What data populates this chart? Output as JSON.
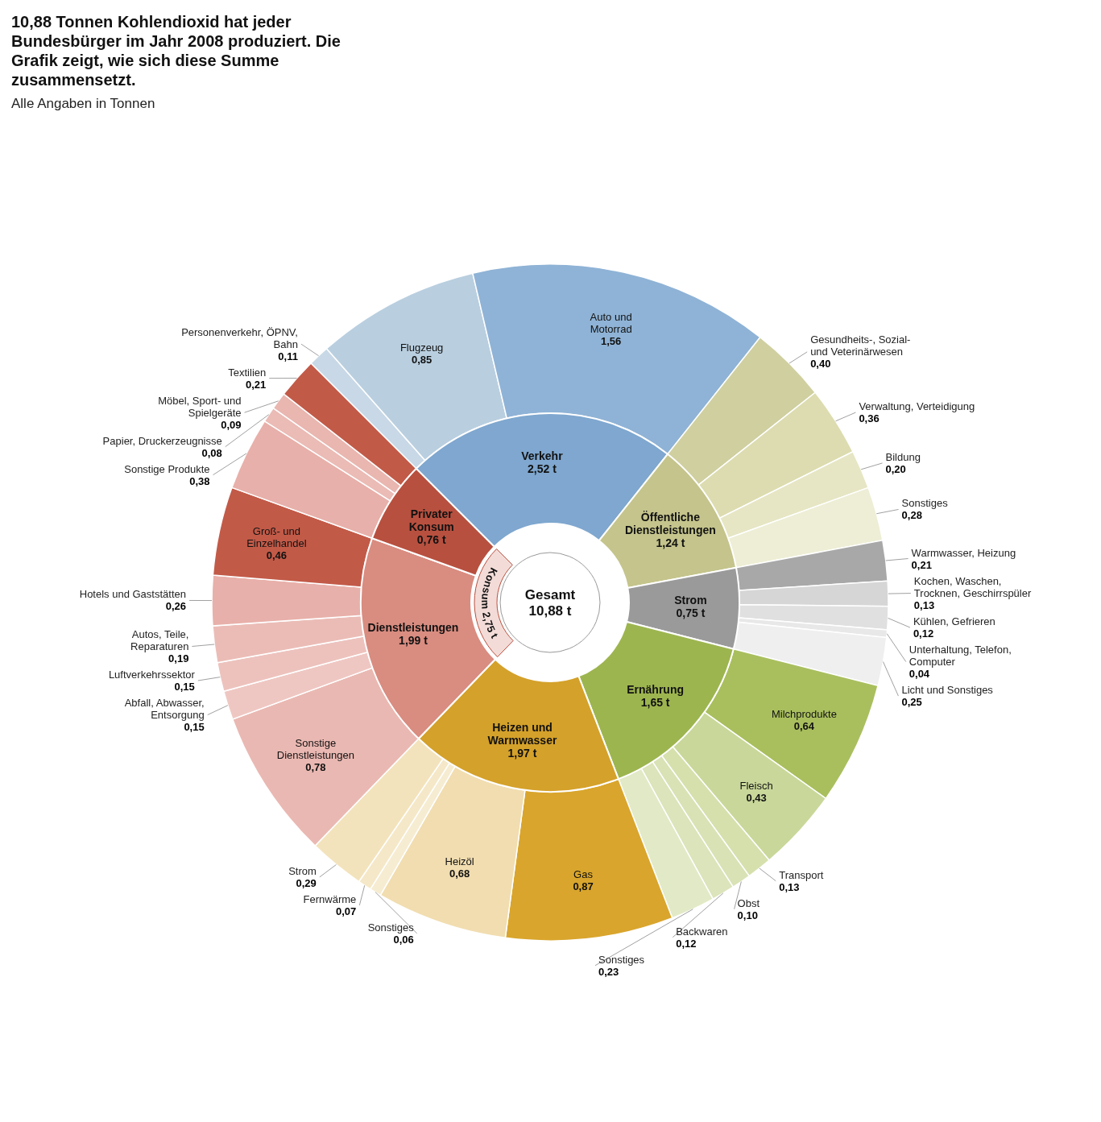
{
  "chart_data": [
    {
      "type": "donut",
      "title": "10,88 Tonnen Kohlendioxid hat jeder Bundesbürger im Jahr 2008 produziert. Die Grafik zeigt, wie sich diese Summe zusammensetzt.",
      "annotations": [
        "Gesamt 10,88 t",
        "Konsum 2,75 t"
      ],
      "categories": [
        "Verkehr",
        "Öffentliche Dienstleistungen",
        "Strom",
        "Ernährung",
        "Heizen und Warmwasser",
        "Dienstleistungen",
        "Privater Konsum"
      ],
      "values": [
        2.52,
        1.24,
        0.75,
        1.65,
        1.97,
        1.99,
        0.76
      ],
      "value_labels": [
        "2,52 t",
        "1,24 t",
        "0,75 t",
        "1,65 t",
        "1,97 t",
        "1,99 t",
        "0,76 t"
      ],
      "colors": [
        "#7fa7cf",
        "#c4c48c",
        "#9a9a9a",
        "#9db54f",
        "#d4a12a",
        "#d98c80",
        "#b8503f"
      ]
    },
    {
      "type": "donut",
      "subtitle": "Alle Angaben in Tonnen",
      "categories": [
        "Personenverkehr, ÖPNV, Bahn",
        "Flugzeug",
        "Auto und Motorrad",
        "Gesundheits-, Sozial- und Veterinärwesen",
        "Verwaltung, Verteidigung",
        "Bildung",
        "Sonstiges",
        "Warmwasser, Heizung",
        "Kochen, Waschen, Trocknen, Geschirrspüler",
        "Kühlen, Gefrieren",
        "Unterhaltung, Telefon, Computer",
        "Licht und Sonstiges",
        "Milchprodukte",
        "Fleisch",
        "Transport",
        "Obst",
        "Backwaren",
        "Sonstiges",
        "Gas",
        "Heizöl",
        "Sonstiges",
        "Fernwärme",
        "Strom",
        "Sonstige Dienstleistungen",
        "Abfall, Abwasser, Entsorgung",
        "Luftverkehrssektor",
        "Autos, Teile, Reparaturen",
        "Hotels und Gaststätten",
        "Groß- und Einzelhandel",
        "Sonstige Produkte",
        "Papier, Druckerzeugnisse",
        "Möbel, Sport- und Spielgeräte",
        "Textilien"
      ],
      "values": [
        0.11,
        0.85,
        1.56,
        0.4,
        0.36,
        0.2,
        0.28,
        0.21,
        0.13,
        0.12,
        0.04,
        0.25,
        0.64,
        0.43,
        0.13,
        0.1,
        0.12,
        0.23,
        0.87,
        0.68,
        0.06,
        0.07,
        0.29,
        0.78,
        0.15,
        0.15,
        0.19,
        0.26,
        0.46,
        0.38,
        0.08,
        0.09,
        0.21
      ],
      "value_labels": [
        "0,11",
        "0,85",
        "1,56",
        "0,40",
        "0,36",
        "0,20",
        "0,28",
        "0,21",
        "0,13",
        "0,12",
        "0,04",
        "0,25",
        "0,64",
        "0,43",
        "0,13",
        "0,10",
        "0,12",
        "0,23",
        "0,87",
        "0,68",
        "0,06",
        "0,07",
        "0,29",
        "0,78",
        "0,15",
        "0,15",
        "0,19",
        "0,26",
        "0,46",
        "0,38",
        "0,08",
        "0,09",
        "0,21"
      ],
      "colors": [
        "#c8d8e6",
        "#b9cfe0",
        "#8fb3d6",
        "#cfcfa0",
        "#dcdcb0",
        "#e6e6c4",
        "#eeeed6",
        "#a8a8a8",
        "#d6d6d6",
        "#e0e0e0",
        "#e8e8e8",
        "#efefef",
        "#a9bf5e",
        "#c9d89a",
        "#d5e0ad",
        "#d8e2b5",
        "#dbe4ba",
        "#e2e9c6",
        "#d9a52c",
        "#f1ddb0",
        "#f6ecd2",
        "#f5e8c8",
        "#f3e3bc",
        "#eab8b2",
        "#efc7c2",
        "#edc2bd",
        "#ebbcb6",
        "#e8b0aa",
        "#c25a48",
        "#e8b0aa",
        "#ebbbb5",
        "#e9b6b0",
        "#c25a48"
      ]
    }
  ]
}
